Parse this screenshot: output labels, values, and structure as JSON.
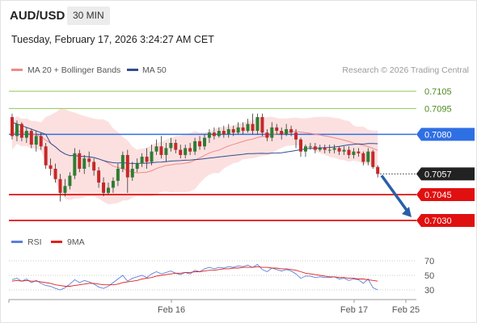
{
  "header": {
    "symbol": "AUD/USD",
    "timeframe": "30 MIN",
    "timestamp": "Tuesday, February 17, 2026 3:24:27 AM CET"
  },
  "legend": {
    "ma20": "MA 20 + Bollinger Bands",
    "ma50": "MA 50",
    "credit": "Research © 2026 Trading Central",
    "rsi": "RSI",
    "rsi_ma": "9MA"
  },
  "colors": {
    "candle_up": "#2e7d32",
    "candle_down": "#c62828",
    "ma20": "#ef8a8a",
    "bollinger_fill": "#fbdada",
    "ma50": "#2f4f8f",
    "pivot_blue": "#2f6fe4",
    "support_red": "#e01010",
    "resistance_green": "#8fc65a",
    "resistance_text": "#4e8a1f",
    "last_price": "#222222",
    "rsi": "#5b7fd8",
    "rsi_ma": "#e02020"
  },
  "chart_data": {
    "type": "candlestick",
    "x_labels": [
      "Feb 16",
      "Feb 17",
      "Feb 25"
    ],
    "levels": [
      {
        "kind": "resistance",
        "label": "0.7105",
        "value": 0.7105
      },
      {
        "kind": "resistance",
        "label": "0.7095",
        "value": 0.7095
      },
      {
        "kind": "pivot",
        "label": "0.7080",
        "value": 0.708
      },
      {
        "kind": "last",
        "label": "0.7057",
        "value": 0.7057
      },
      {
        "kind": "support",
        "label": "0.7045",
        "value": 0.7045
      },
      {
        "kind": "support",
        "label": "0.7030",
        "value": 0.703
      }
    ],
    "forecast_arrow": {
      "from": 0.7057,
      "to": 0.703
    },
    "candles": [
      [
        0.709,
        0.7079,
        0.7092,
        0.7077
      ],
      [
        0.7079,
        0.7086,
        0.7088,
        0.7076
      ],
      [
        0.7086,
        0.7078,
        0.7087,
        0.7076
      ],
      [
        0.7078,
        0.7082,
        0.7084,
        0.7075
      ],
      [
        0.7082,
        0.7074,
        0.7083,
        0.7072
      ],
      [
        0.7074,
        0.7079,
        0.7082,
        0.707
      ],
      [
        0.7079,
        0.7073,
        0.7081,
        0.7071
      ],
      [
        0.7073,
        0.7062,
        0.7075,
        0.706
      ],
      [
        0.7062,
        0.706,
        0.7066,
        0.7056
      ],
      [
        0.706,
        0.7054,
        0.7063,
        0.7052
      ],
      [
        0.7054,
        0.7046,
        0.7057,
        0.7041
      ],
      [
        0.7046,
        0.705,
        0.7054,
        0.7044
      ],
      [
        0.705,
        0.7056,
        0.7058,
        0.7048
      ],
      [
        0.7056,
        0.7069,
        0.7072,
        0.7054
      ],
      [
        0.7069,
        0.706,
        0.7071,
        0.7058
      ],
      [
        0.706,
        0.7066,
        0.7068,
        0.7057
      ],
      [
        0.7066,
        0.7064,
        0.707,
        0.7061
      ],
      [
        0.7064,
        0.7059,
        0.7066,
        0.7056
      ],
      [
        0.7059,
        0.7052,
        0.7061,
        0.7049
      ],
      [
        0.7052,
        0.7046,
        0.7055,
        0.7044
      ],
      [
        0.7046,
        0.7049,
        0.7052,
        0.7045
      ],
      [
        0.7049,
        0.7053,
        0.7055,
        0.7046
      ],
      [
        0.7053,
        0.706,
        0.7063,
        0.705
      ],
      [
        0.706,
        0.7068,
        0.707,
        0.7058
      ],
      [
        0.7068,
        0.7055,
        0.7071,
        0.7046
      ],
      [
        0.7055,
        0.706,
        0.7064,
        0.7053
      ],
      [
        0.706,
        0.7063,
        0.7066,
        0.7058
      ],
      [
        0.7063,
        0.7067,
        0.7069,
        0.7061
      ],
      [
        0.7067,
        0.7064,
        0.7072,
        0.706
      ],
      [
        0.7064,
        0.707,
        0.7074,
        0.7062
      ],
      [
        0.707,
        0.7073,
        0.7077,
        0.7068
      ],
      [
        0.7073,
        0.7068,
        0.7079,
        0.7066
      ],
      [
        0.7068,
        0.7072,
        0.7075,
        0.7064
      ],
      [
        0.7072,
        0.7075,
        0.7078,
        0.707
      ],
      [
        0.7075,
        0.7071,
        0.7077,
        0.7069
      ],
      [
        0.7071,
        0.7068,
        0.7074,
        0.7066
      ],
      [
        0.7068,
        0.7072,
        0.7074,
        0.7066
      ],
      [
        0.7072,
        0.707,
        0.7075,
        0.7068
      ],
      [
        0.707,
        0.7076,
        0.7078,
        0.7068
      ],
      [
        0.7076,
        0.7073,
        0.7079,
        0.7071
      ],
      [
        0.7073,
        0.7078,
        0.708,
        0.7071
      ],
      [
        0.7078,
        0.7081,
        0.7083,
        0.7075
      ],
      [
        0.7081,
        0.7079,
        0.7084,
        0.7077
      ],
      [
        0.7079,
        0.7082,
        0.7084,
        0.7078
      ],
      [
        0.7082,
        0.708,
        0.7085,
        0.7078
      ],
      [
        0.708,
        0.7083,
        0.7086,
        0.7078
      ],
      [
        0.7083,
        0.7081,
        0.7085,
        0.7079
      ],
      [
        0.7081,
        0.7084,
        0.7087,
        0.708
      ],
      [
        0.7084,
        0.7082,
        0.7087,
        0.708
      ],
      [
        0.7082,
        0.7086,
        0.7089,
        0.7081
      ],
      [
        0.7086,
        0.7082,
        0.7092,
        0.708
      ],
      [
        0.7082,
        0.709,
        0.7092,
        0.708
      ],
      [
        0.709,
        0.7081,
        0.7092,
        0.7079
      ],
      [
        0.7081,
        0.7078,
        0.7083,
        0.7076
      ],
      [
        0.7078,
        0.7084,
        0.7087,
        0.7076
      ],
      [
        0.7084,
        0.7082,
        0.7086,
        0.708
      ],
      [
        0.7082,
        0.708,
        0.7084,
        0.7077
      ],
      [
        0.708,
        0.7083,
        0.7086,
        0.7079
      ],
      [
        0.7083,
        0.7081,
        0.7085,
        0.7079
      ],
      [
        0.7081,
        0.7077,
        0.7083,
        0.7072
      ],
      [
        0.7077,
        0.707,
        0.7078,
        0.7067
      ],
      [
        0.707,
        0.7073,
        0.7074,
        0.7067
      ],
      [
        0.7073,
        0.7073,
        0.7075,
        0.7071
      ],
      [
        0.7073,
        0.7071,
        0.7075,
        0.7069
      ],
      [
        0.7071,
        0.7072,
        0.7074,
        0.707
      ],
      [
        0.7072,
        0.7071,
        0.7074,
        0.7069
      ],
      [
        0.7071,
        0.7071,
        0.7074,
        0.7069
      ],
      [
        0.7071,
        0.7072,
        0.7074,
        0.7069
      ],
      [
        0.7072,
        0.707,
        0.7073,
        0.7068
      ],
      [
        0.707,
        0.7071,
        0.7073,
        0.7068
      ],
      [
        0.7071,
        0.7068,
        0.7073,
        0.7066
      ],
      [
        0.7068,
        0.707,
        0.7072,
        0.7066
      ],
      [
        0.707,
        0.7069,
        0.7072,
        0.7067
      ],
      [
        0.7069,
        0.7064,
        0.707,
        0.7062
      ],
      [
        0.7064,
        0.707,
        0.7072,
        0.7062
      ],
      [
        0.707,
        0.7061,
        0.7071,
        0.706
      ],
      [
        0.7061,
        0.7057,
        0.7062,
        0.7055
      ]
    ],
    "rsi_axis": {
      "ticks": [
        30,
        50,
        70
      ],
      "ylim": [
        20,
        80
      ]
    },
    "rsi": [
      44,
      46,
      42,
      45,
      40,
      43,
      39,
      36,
      35,
      32,
      30,
      33,
      38,
      44,
      40,
      43,
      41,
      38,
      34,
      32,
      35,
      40,
      45,
      50,
      42,
      46,
      48,
      50,
      47,
      52,
      55,
      52,
      54,
      56,
      53,
      51,
      54,
      52,
      57,
      55,
      59,
      61,
      59,
      61,
      60,
      62,
      61,
      63,
      62,
      64,
      61,
      65,
      58,
      55,
      60,
      58,
      56,
      58,
      56,
      52,
      46,
      49,
      49,
      47,
      48,
      47,
      47,
      48,
      45,
      46,
      43,
      45,
      44,
      39,
      45,
      33,
      30
    ],
    "rsi_ma": [
      42,
      43,
      42,
      43,
      42,
      42,
      41,
      40,
      39,
      37,
      36,
      35,
      35,
      36,
      37,
      38,
      39,
      39,
      38,
      37,
      37,
      37,
      38,
      40,
      41,
      42,
      43,
      45,
      46,
      47,
      49,
      50,
      51,
      52,
      53,
      53,
      54,
      54,
      55,
      55,
      56,
      57,
      57,
      58,
      59,
      59,
      60,
      60,
      61,
      61,
      61,
      62,
      61,
      61,
      60,
      60,
      59,
      59,
      58,
      57,
      55,
      53,
      52,
      51,
      50,
      49,
      48,
      48,
      47,
      47,
      46,
      46,
      45,
      45,
      44,
      43,
      42
    ]
  }
}
